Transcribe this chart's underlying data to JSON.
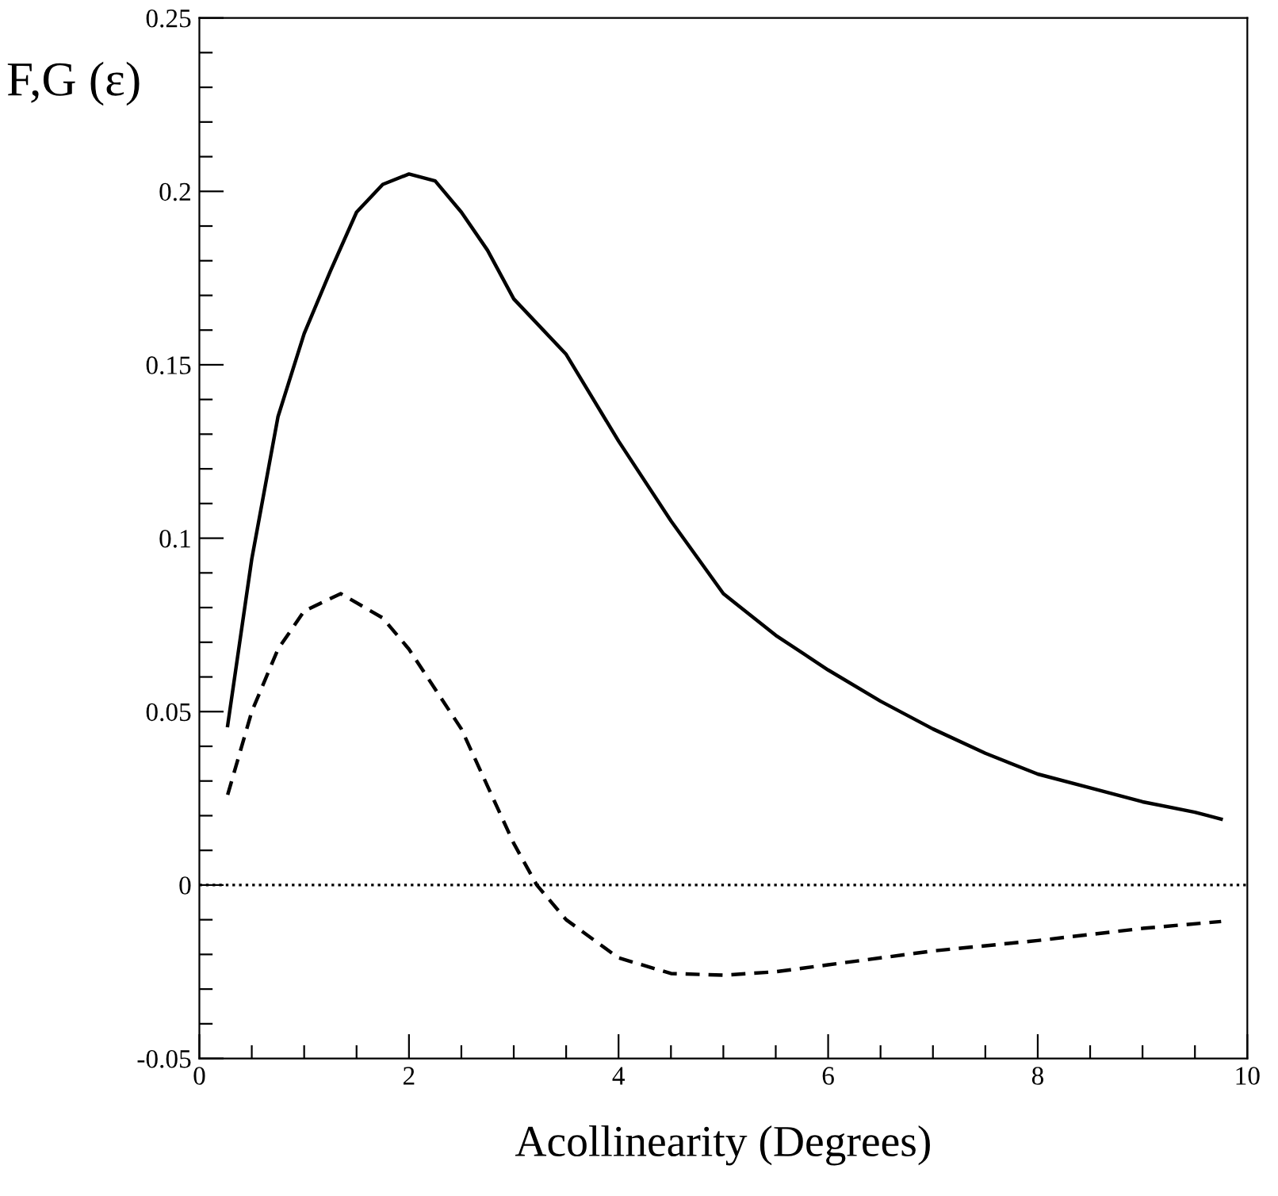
{
  "chart_data": {
    "type": "line",
    "xlabel": "Acollinearity (Degrees)",
    "ylabel": "F,G (ε)",
    "xlim": [
      0,
      10
    ],
    "ylim": [
      -0.05,
      0.25
    ],
    "xticks": [
      0,
      {
        "value": 0.5,
        "label": null
      },
      {
        "value": 1,
        "label": null
      },
      {
        "value": 1.5,
        "label": null
      },
      2,
      {
        "value": 2.5,
        "label": null
      },
      {
        "value": 3,
        "label": null
      },
      {
        "value": 3.5,
        "label": null
      },
      4,
      {
        "value": 4.5,
        "label": null
      },
      {
        "value": 5,
        "label": null
      },
      {
        "value": 5.5,
        "label": null
      },
      6,
      {
        "value": 6.5,
        "label": null
      },
      {
        "value": 7,
        "label": null
      },
      {
        "value": 7.5,
        "label": null
      },
      8,
      {
        "value": 8.5,
        "label": null
      },
      {
        "value": 9,
        "label": null
      },
      {
        "value": 9.5,
        "label": null
      },
      10
    ],
    "yticks": [
      -0.05,
      {
        "value": -0.04,
        "label": null
      },
      {
        "value": -0.03,
        "label": null
      },
      {
        "value": -0.02,
        "label": null
      },
      {
        "value": -0.01,
        "label": null
      },
      0,
      {
        "value": 0.01,
        "label": null
      },
      {
        "value": 0.02,
        "label": null
      },
      {
        "value": 0.03,
        "label": null
      },
      {
        "value": 0.04,
        "label": null
      },
      0.05,
      {
        "value": 0.06,
        "label": null
      },
      {
        "value": 0.07,
        "label": null
      },
      {
        "value": 0.08,
        "label": null
      },
      {
        "value": 0.09,
        "label": null
      },
      0.1,
      {
        "value": 0.11,
        "label": null
      },
      {
        "value": 0.12,
        "label": null
      },
      {
        "value": 0.13,
        "label": null
      },
      {
        "value": 0.14,
        "label": null
      },
      0.15,
      {
        "value": 0.16,
        "label": null
      },
      {
        "value": 0.17,
        "label": null
      },
      {
        "value": 0.18,
        "label": null
      },
      {
        "value": 0.19,
        "label": null
      },
      0.2,
      {
        "value": 0.21,
        "label": null
      },
      {
        "value": 0.22,
        "label": null
      },
      {
        "value": 0.23,
        "label": null
      },
      {
        "value": 0.24,
        "label": null
      },
      0.25
    ],
    "grid": false,
    "legend": false,
    "marker": "none",
    "series": [
      {
        "color": "#000000",
        "line_style": "solid",
        "x": [
          0.27,
          0.5,
          0.75,
          1.0,
          1.25,
          1.5,
          1.75,
          2.0,
          2.25,
          2.5,
          2.75,
          3.0,
          3.5,
          4.0,
          4.5,
          5.0,
          5.5,
          6.0,
          6.5,
          7.0,
          7.5,
          8.0,
          8.5,
          9.0,
          9.5,
          9.75
        ],
        "values": [
          0.046,
          0.094,
          0.135,
          0.159,
          0.177,
          0.194,
          0.202,
          0.205,
          0.203,
          0.194,
          0.183,
          0.169,
          0.153,
          0.128,
          0.105,
          0.084,
          0.072,
          0.062,
          0.053,
          0.045,
          0.038,
          0.032,
          0.028,
          0.024,
          0.021,
          0.019
        ]
      },
      {
        "color": "#000000",
        "line_style": "dashed",
        "x": [
          0.27,
          0.5,
          0.75,
          1.0,
          1.35,
          1.75,
          2.0,
          2.5,
          3.0,
          3.22,
          3.5,
          4.0,
          4.5,
          5.0,
          5.5,
          6.0,
          7.0,
          8.0,
          9.0,
          9.75
        ],
        "values": [
          0.026,
          0.05,
          0.068,
          0.079,
          0.084,
          0.077,
          0.068,
          0.045,
          0.012,
          0.0,
          -0.01,
          -0.021,
          -0.0255,
          -0.026,
          -0.025,
          -0.023,
          -0.019,
          -0.016,
          -0.0125,
          -0.0105
        ]
      }
    ],
    "ref_lines": [
      {
        "axis": "y",
        "value": 0,
        "line_style": "dotted",
        "color": "#000000"
      }
    ]
  }
}
